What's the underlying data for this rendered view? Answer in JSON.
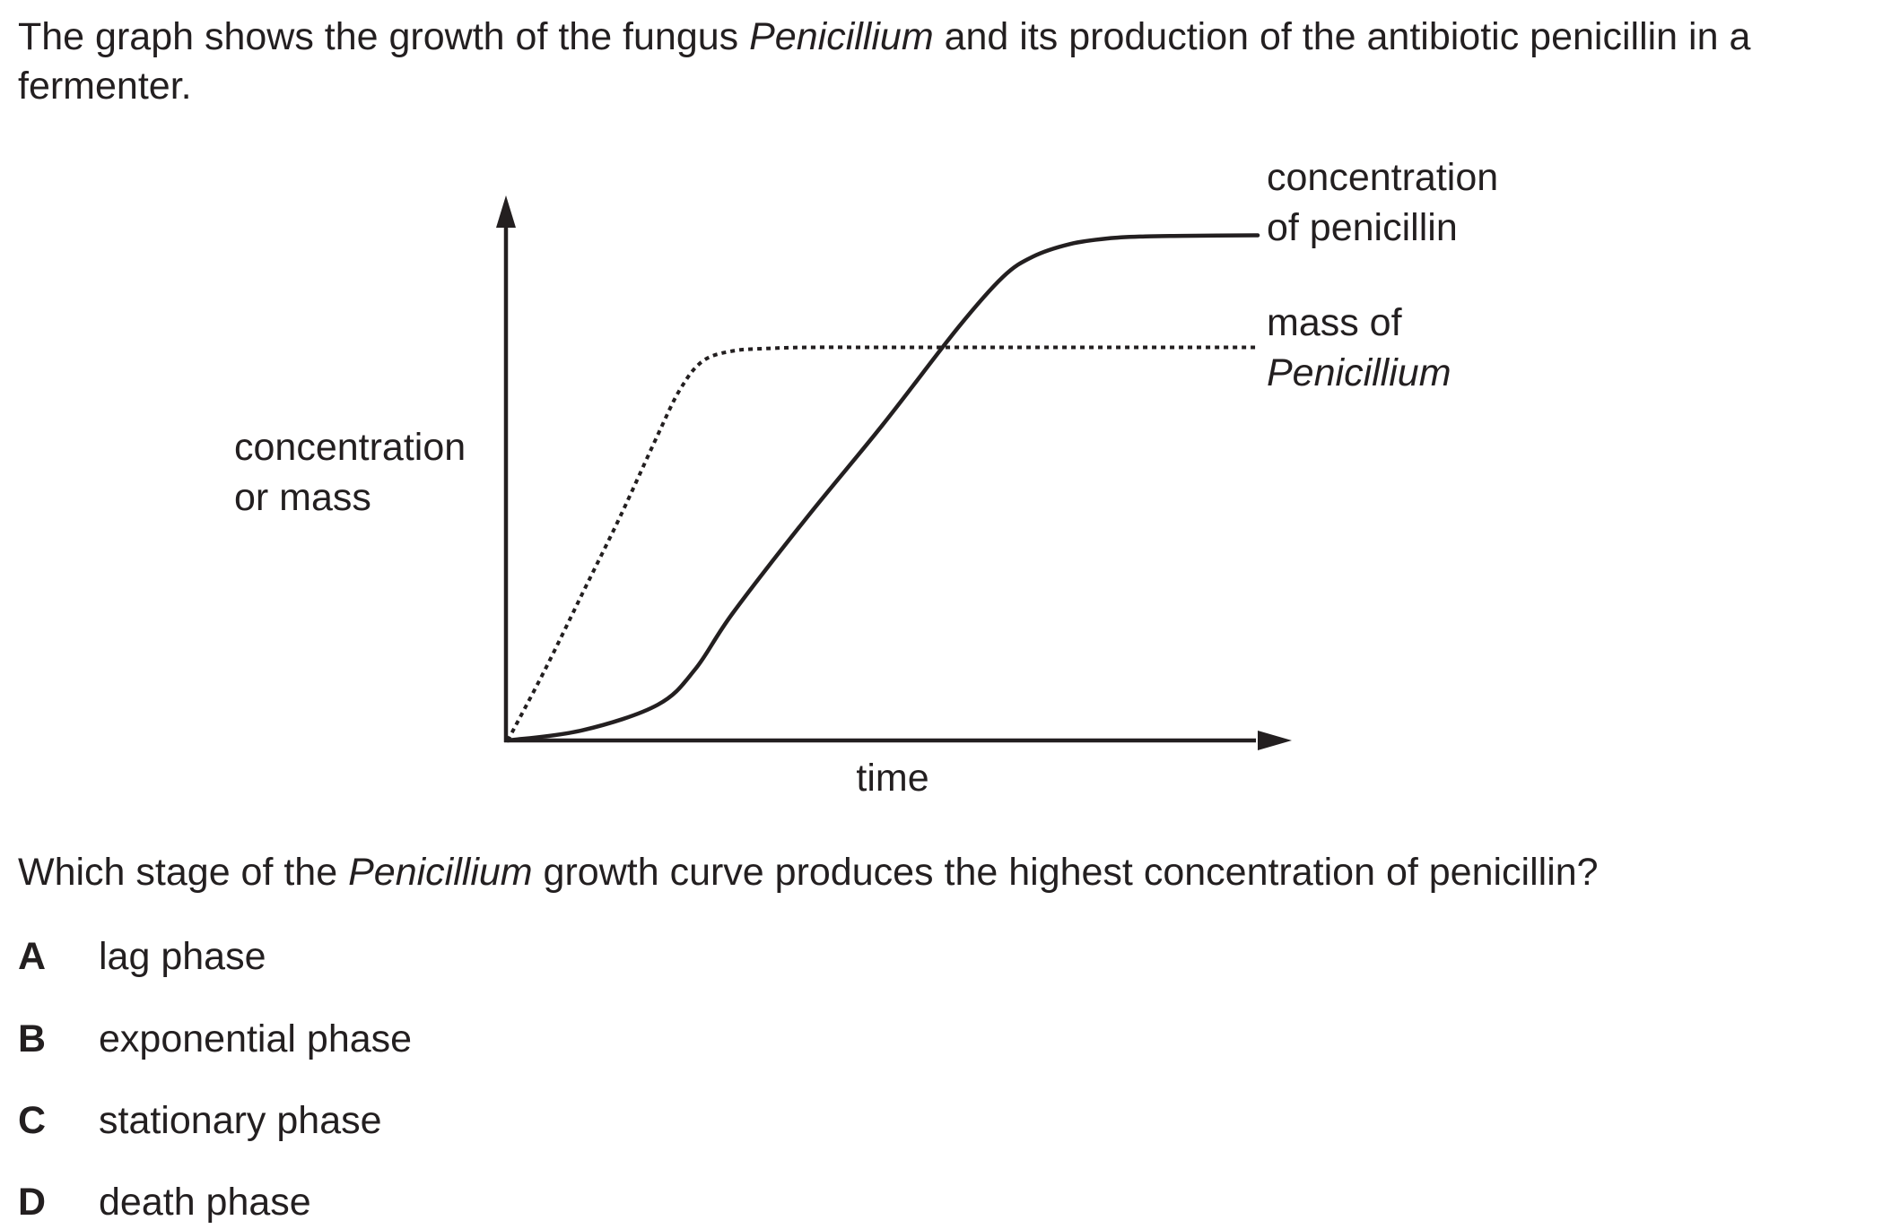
{
  "intro": {
    "part1": "The graph shows the growth of the fungus ",
    "italic": "Penicillium",
    "part2": " and its production of the antibiotic penicillin in a fermenter."
  },
  "chart_data": {
    "type": "line",
    "title": "",
    "xlabel": "time",
    "ylabel_lines": [
      "concentration",
      "or mass"
    ],
    "xlim": [
      0,
      10
    ],
    "ylim": [
      0,
      10
    ],
    "grid": false,
    "legend": "direct labels at right end of each curve",
    "series": [
      {
        "name_lines": [
          "concentration",
          "of penicillin"
        ],
        "italic_line": null,
        "style": "solid",
        "x": [
          0,
          1,
          2,
          2.5,
          3,
          4,
          5,
          6,
          6.6,
          7,
          7.5,
          8,
          8.5,
          9,
          10
        ],
        "y": [
          0,
          0.2,
          0.7,
          1.4,
          2.5,
          4.4,
          6.2,
          8.1,
          9.1,
          9.5,
          9.75,
          9.86,
          9.9,
          9.91,
          9.92
        ]
      },
      {
        "name_lines": [
          "mass of",
          "Penicillium"
        ],
        "italic_line": 1,
        "style": "dotted",
        "x": [
          0,
          0.5,
          1,
          1.5,
          2,
          2.3,
          2.6,
          3,
          3.5,
          4,
          5,
          6,
          7,
          8,
          9,
          10
        ],
        "y": [
          0,
          1.4,
          2.9,
          4.4,
          6.0,
          6.9,
          7.45,
          7.65,
          7.7,
          7.72,
          7.72,
          7.72,
          7.72,
          7.72,
          7.72,
          7.72
        ]
      }
    ]
  },
  "question": {
    "part1": "Which stage of the ",
    "italic": "Penicillium",
    "part2": " growth curve produces the highest concentration of penicillin?"
  },
  "options": [
    {
      "letter": "A",
      "text": "lag phase"
    },
    {
      "letter": "B",
      "text": "exponential phase"
    },
    {
      "letter": "C",
      "text": "stationary phase"
    },
    {
      "letter": "D",
      "text": "death phase"
    }
  ]
}
